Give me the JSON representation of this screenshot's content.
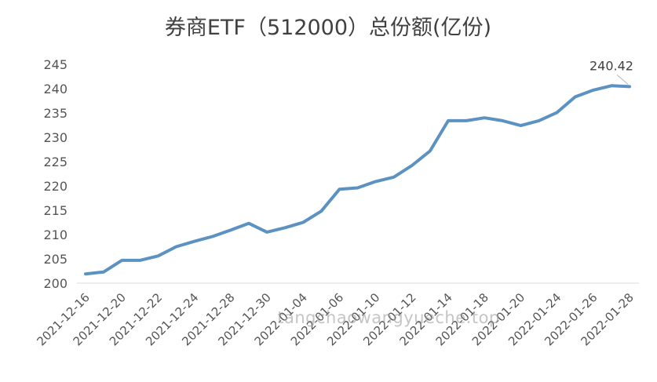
{
  "chart_data": {
    "type": "line",
    "title": "券商ETF（512000）总份额(亿份)",
    "xlabel": "",
    "ylabel": "",
    "ylim": [
      200,
      245
    ],
    "yticks": [
      200,
      205,
      210,
      215,
      220,
      225,
      230,
      235,
      240,
      245
    ],
    "grid": false,
    "legend": "none",
    "line_color": "#5b92c2",
    "x": [
      "2021-12-16",
      "2021-12-17",
      "2021-12-20",
      "2021-12-21",
      "2021-12-22",
      "2021-12-23",
      "2021-12-24",
      "2021-12-27",
      "2021-12-28",
      "2021-12-29",
      "2021-12-30",
      "2021-12-31",
      "2022-01-04",
      "2022-01-05",
      "2022-01-06",
      "2022-01-07",
      "2022-01-10",
      "2022-01-11",
      "2022-01-12",
      "2022-01-13",
      "2022-01-14",
      "2022-01-17",
      "2022-01-18",
      "2022-01-19",
      "2022-01-20",
      "2022-01-21",
      "2022-01-24",
      "2022-01-25",
      "2022-01-26",
      "2022-01-27",
      "2022-01-28"
    ],
    "xtick_labels": [
      "2021-12-16",
      "2021-12-20",
      "2021-12-22",
      "2021-12-24",
      "2021-12-28",
      "2021-12-30",
      "2022-01-04",
      "2022-01-06",
      "2022-01-10",
      "2022-01-12",
      "2022-01-14",
      "2022-01-18",
      "2022-01-20",
      "2022-01-24",
      "2022-01-26",
      "2022-01-28"
    ],
    "series": [
      {
        "values": [
          201.9,
          202.3,
          204.7,
          204.7,
          205.6,
          207.5,
          208.6,
          209.6,
          210.9,
          212.3,
          210.5,
          211.4,
          212.5,
          214.8,
          219.3,
          219.6,
          220.9,
          221.8,
          224.2,
          227.2,
          233.4,
          233.4,
          234.0,
          233.4,
          232.4,
          233.4,
          235.1,
          238.3,
          239.7,
          240.6,
          240.42
        ]
      }
    ],
    "annotations": [
      {
        "text": "240.42",
        "x": "2022-01-28",
        "y": 240.42
      }
    ]
  },
  "watermark": "tangchaowangyueche.top"
}
